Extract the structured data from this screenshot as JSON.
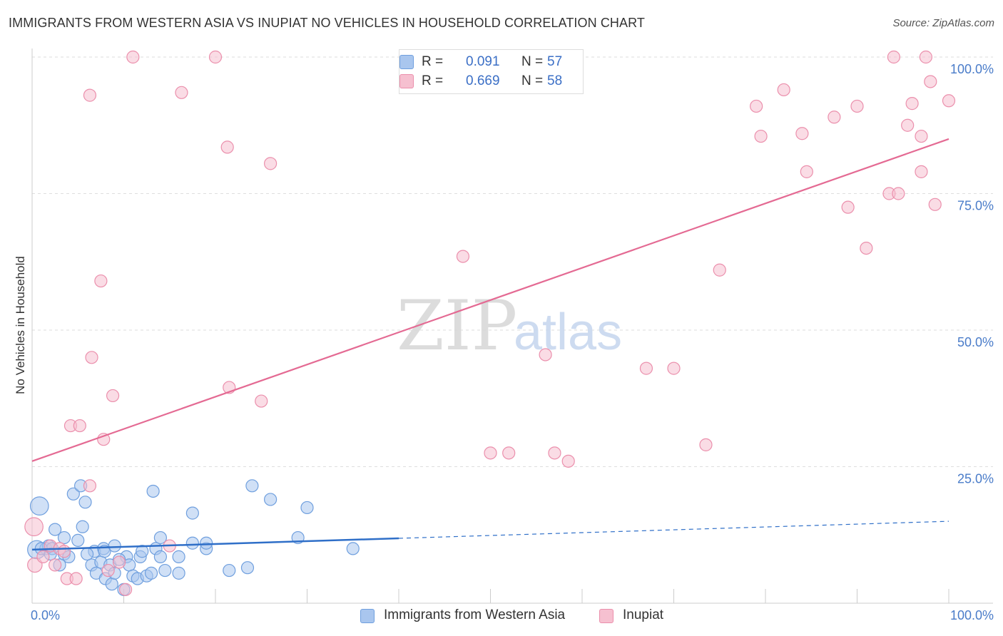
{
  "title": "IMMIGRANTS FROM WESTERN ASIA VS INUPIAT NO VEHICLES IN HOUSEHOLD CORRELATION CHART",
  "source": "Source: ZipAtlas.com",
  "watermark": {
    "zip": "ZIP",
    "atlas": "atlas"
  },
  "colors": {
    "blue_fill": "#a9c6ee",
    "blue_stroke": "#6f9fde",
    "blue_line": "#2f6fc8",
    "pink_fill": "#f6c0d0",
    "pink_stroke": "#eb8fac",
    "pink_line": "#e46a93",
    "tick_text": "#4a7cc9"
  },
  "legend": {
    "rows": [
      {
        "r_label": "R =",
        "r_value": "0.091",
        "n_label": "N =",
        "n_value": "57"
      },
      {
        "r_label": "R =",
        "r_value": "0.669",
        "n_label": "N =",
        "n_value": "58"
      }
    ]
  },
  "chart_data": {
    "type": "scatter",
    "title": "IMMIGRANTS FROM WESTERN ASIA VS INUPIAT NO VEHICLES IN HOUSEHOLD CORRELATION CHART",
    "xlabel": "",
    "ylabel": "No Vehicles in Household",
    "xlim": [
      0,
      100
    ],
    "ylim": [
      0,
      100
    ],
    "x_tick_labels": {
      "min": "0.0%",
      "max": "100.0%"
    },
    "y_tick_labels": [
      "25.0%",
      "50.0%",
      "75.0%",
      "100.0%"
    ],
    "y_ticks": [
      25,
      50,
      75,
      100
    ],
    "series": [
      {
        "name": "Immigrants from Western Asia",
        "color": "blue",
        "R": 0.091,
        "N": 57,
        "trend": {
          "x0": 0,
          "y0": 9.8,
          "x_solid_end": 40,
          "x1": 100,
          "y1": 15.0
        },
        "points": [
          [
            0.8,
            17.8,
            1.5
          ],
          [
            0.5,
            9.8,
            1.5
          ],
          [
            1.5,
            10.0,
            1
          ],
          [
            1.8,
            10.5,
            1
          ],
          [
            2.2,
            10.0,
            1
          ],
          [
            2.5,
            13.5,
            1
          ],
          [
            3.0,
            7.0,
            1
          ],
          [
            3.5,
            12.0,
            1
          ],
          [
            3.5,
            9.0,
            1
          ],
          [
            4.0,
            8.5,
            1
          ],
          [
            4.5,
            20.0,
            1
          ],
          [
            5.0,
            11.5,
            1
          ],
          [
            5.3,
            21.5,
            1
          ],
          [
            5.5,
            14.0,
            1
          ],
          [
            5.8,
            18.5,
            1
          ],
          [
            6.5,
            7.0,
            1
          ],
          [
            6.8,
            9.5,
            1
          ],
          [
            7.0,
            5.5,
            1
          ],
          [
            7.5,
            7.5,
            1
          ],
          [
            7.8,
            10.0,
            1
          ],
          [
            7.9,
            9.5,
            1
          ],
          [
            8.0,
            4.5,
            1
          ],
          [
            8.5,
            7.0,
            1
          ],
          [
            8.7,
            3.5,
            1
          ],
          [
            9.0,
            5.5,
            1
          ],
          [
            9.0,
            10.5,
            1
          ],
          [
            10.0,
            2.5,
            1
          ],
          [
            10.3,
            8.5,
            1
          ],
          [
            10.6,
            7.0,
            1
          ],
          [
            11.0,
            5.0,
            1
          ],
          [
            11.5,
            4.5,
            1
          ],
          [
            11.8,
            8.5,
            1
          ],
          [
            12.0,
            9.5,
            1
          ],
          [
            12.5,
            5.0,
            1
          ],
          [
            13.0,
            5.5,
            1
          ],
          [
            13.2,
            20.5,
            1
          ],
          [
            13.5,
            10.0,
            1
          ],
          [
            14.0,
            8.5,
            1
          ],
          [
            14.0,
            12.0,
            1
          ],
          [
            14.5,
            6.0,
            1
          ],
          [
            16.0,
            5.5,
            1
          ],
          [
            16.0,
            8.5,
            1
          ],
          [
            17.5,
            11.0,
            1
          ],
          [
            17.5,
            16.5,
            1
          ],
          [
            19.0,
            10.0,
            1
          ],
          [
            19.0,
            11.0,
            1
          ],
          [
            21.5,
            6.0,
            1
          ],
          [
            23.5,
            6.5,
            1
          ],
          [
            24.0,
            21.5,
            1
          ],
          [
            26.0,
            19.0,
            1
          ],
          [
            29.0,
            12.0,
            1
          ],
          [
            30.0,
            17.5,
            1
          ],
          [
            35.0,
            10.0,
            1
          ],
          [
            1.0,
            10.0,
            1
          ],
          [
            2.0,
            9.0,
            1
          ],
          [
            6.0,
            9.0,
            1
          ],
          [
            9.5,
            8.0,
            1
          ]
        ]
      },
      {
        "name": "Inupiat",
        "color": "pink",
        "R": 0.669,
        "N": 58,
        "trend": {
          "x0": 0,
          "y0": 26.0,
          "x1": 100,
          "y1": 85.0
        },
        "points": [
          [
            0.2,
            14.0,
            1.5
          ],
          [
            0.3,
            7.0,
            1.2
          ],
          [
            1.2,
            8.5,
            1
          ],
          [
            2.0,
            10.5,
            1
          ],
          [
            2.5,
            7.0,
            1
          ],
          [
            3.0,
            10.0,
            1
          ],
          [
            3.5,
            9.5,
            1
          ],
          [
            3.8,
            4.5,
            1
          ],
          [
            4.2,
            32.5,
            1
          ],
          [
            4.8,
            4.5,
            1
          ],
          [
            5.2,
            32.5,
            1
          ],
          [
            6.3,
            21.5,
            1
          ],
          [
            6.3,
            93.0,
            1
          ],
          [
            6.5,
            45.0,
            1
          ],
          [
            7.5,
            59.0,
            1
          ],
          [
            7.8,
            30.0,
            1
          ],
          [
            8.3,
            6.0,
            1
          ],
          [
            8.8,
            38.0,
            1
          ],
          [
            9.5,
            7.5,
            1
          ],
          [
            10.2,
            2.5,
            1
          ],
          [
            11.0,
            100.0,
            1
          ],
          [
            15.0,
            10.5,
            1
          ],
          [
            16.3,
            93.5,
            1
          ],
          [
            20.0,
            100.0,
            1
          ],
          [
            21.3,
            83.5,
            1
          ],
          [
            21.5,
            39.5,
            1
          ],
          [
            25.0,
            37.0,
            1
          ],
          [
            26.0,
            80.5,
            1
          ],
          [
            47.0,
            63.5,
            1
          ],
          [
            50.0,
            27.5,
            1
          ],
          [
            52.0,
            27.5,
            1
          ],
          [
            56.0,
            45.5,
            1
          ],
          [
            57.0,
            27.5,
            1
          ],
          [
            58.5,
            26.0,
            1
          ],
          [
            67.0,
            43.0,
            1
          ],
          [
            70.0,
            43.0,
            1
          ],
          [
            73.5,
            29.0,
            1
          ],
          [
            75.0,
            61.0,
            1
          ],
          [
            79.0,
            91.0,
            1
          ],
          [
            79.5,
            85.5,
            1
          ],
          [
            82.0,
            94.0,
            1
          ],
          [
            84.0,
            86.0,
            1
          ],
          [
            84.5,
            79.0,
            1
          ],
          [
            87.5,
            89.0,
            1
          ],
          [
            89.0,
            72.5,
            1
          ],
          [
            90.0,
            91.0,
            1
          ],
          [
            91.0,
            65.0,
            1
          ],
          [
            93.5,
            75.0,
            1
          ],
          [
            94.0,
            100.0,
            1
          ],
          [
            94.5,
            75.0,
            1
          ],
          [
            95.5,
            87.5,
            1
          ],
          [
            96.0,
            91.5,
            1
          ],
          [
            97.0,
            79.0,
            1
          ],
          [
            97.0,
            85.5,
            1
          ],
          [
            97.5,
            100.0,
            1
          ],
          [
            98.0,
            95.5,
            1
          ],
          [
            98.5,
            73.0,
            1
          ],
          [
            100.0,
            92.0,
            1
          ]
        ]
      }
    ]
  },
  "bottom_legend": [
    {
      "label": "Immigrants from Western Asia"
    },
    {
      "label": "Inupiat"
    }
  ]
}
